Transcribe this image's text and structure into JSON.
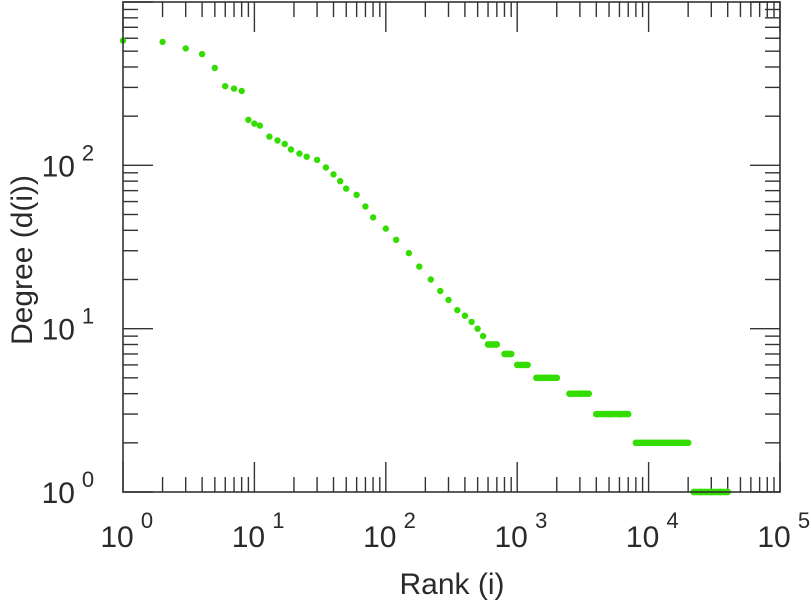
{
  "chart_data": {
    "type": "scatter",
    "xlabel": "Rank (i)",
    "ylabel": "Degree (d(i))",
    "xscale": "log",
    "yscale": "log",
    "xlim": [
      1,
      100000
    ],
    "ylim": [
      1,
      1000
    ],
    "grid": false,
    "point_color": "#33dd00",
    "x_ticks": [
      {
        "base": "10",
        "exp": "0"
      },
      {
        "base": "10",
        "exp": "1"
      },
      {
        "base": "10",
        "exp": "2"
      },
      {
        "base": "10",
        "exp": "3"
      },
      {
        "base": "10",
        "exp": "4"
      },
      {
        "base": "10",
        "exp": "5"
      }
    ],
    "y_ticks": [
      {
        "base": "10",
        "exp": "0"
      },
      {
        "base": "10",
        "exp": "1"
      },
      {
        "base": "10",
        "exp": "2"
      }
    ],
    "series": [
      {
        "points": [
          [
            1,
            580
          ],
          [
            2,
            570
          ],
          [
            3,
            520
          ],
          [
            4,
            480
          ],
          [
            5,
            395
          ],
          [
            6,
            305
          ],
          [
            7,
            295
          ],
          [
            8,
            285
          ],
          [
            9,
            190
          ],
          [
            10,
            180
          ],
          [
            11,
            175
          ],
          [
            13,
            150
          ],
          [
            15,
            142
          ],
          [
            17,
            135
          ],
          [
            19,
            125
          ],
          [
            22,
            118
          ],
          [
            25,
            113
          ],
          [
            30,
            108
          ],
          [
            35,
            97
          ],
          [
            40,
            88
          ],
          [
            45,
            80
          ],
          [
            50,
            72
          ],
          [
            60,
            66
          ],
          [
            70,
            56
          ],
          [
            80,
            48
          ],
          [
            100,
            41
          ],
          [
            120,
            35
          ],
          [
            150,
            29
          ],
          [
            180,
            24
          ],
          [
            220,
            20
          ],
          [
            260,
            17
          ],
          [
            300,
            15
          ],
          [
            350,
            13
          ],
          [
            400,
            12
          ],
          [
            450,
            11
          ],
          [
            500,
            10
          ],
          [
            550,
            9
          ],
          [
            600,
            8
          ],
          [
            700,
            8
          ],
          [
            800,
            7
          ],
          [
            900,
            7
          ],
          [
            1000,
            6
          ],
          [
            1200,
            6
          ],
          [
            1400,
            5
          ],
          [
            1700,
            5
          ],
          [
            2000,
            5
          ],
          [
            2500,
            4
          ],
          [
            3000,
            4
          ],
          [
            3500,
            4
          ],
          [
            4000,
            3
          ],
          [
            5000,
            3
          ],
          [
            6000,
            3
          ],
          [
            7000,
            3
          ],
          [
            8000,
            2
          ],
          [
            10000,
            2
          ],
          [
            12000,
            2
          ],
          [
            15000,
            2
          ],
          [
            18000,
            2
          ],
          [
            20000,
            2
          ],
          [
            22000,
            1
          ],
          [
            25000,
            1
          ],
          [
            30000,
            1
          ],
          [
            35000,
            1
          ],
          [
            40000,
            1
          ]
        ]
      }
    ]
  }
}
